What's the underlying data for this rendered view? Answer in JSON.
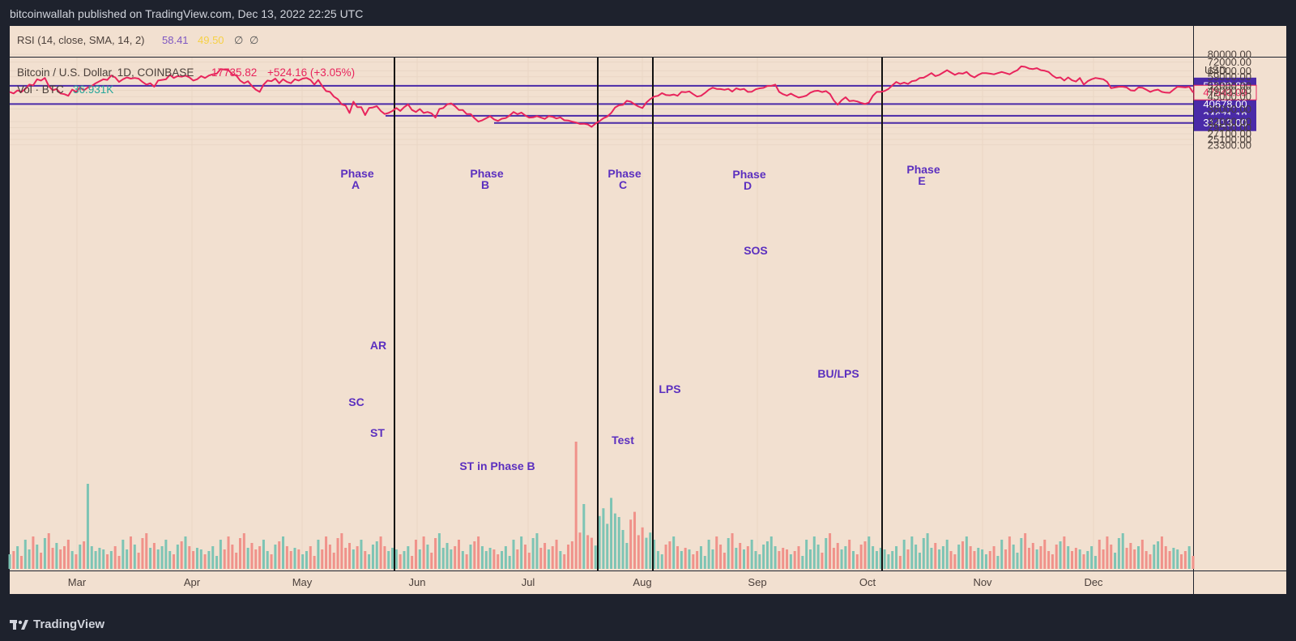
{
  "header": {
    "text": "bitcoinwallah published on TradingView.com, Dec 13, 2022 22:25 UTC"
  },
  "footer": {
    "brand": "TradingView"
  },
  "rsi": {
    "label": "RSI (14, close, SMA, 14, 2)",
    "value": "58.41",
    "sma": "49.50",
    "extra1": "∅",
    "extra2": "∅"
  },
  "legend": {
    "symbol": "Bitcoin / U.S. Dollar, 1D, COINBASE",
    "price": "17735.82",
    "change": "+524.16 (+3.05%)",
    "vol_label": "Vol · BTC",
    "vol_value": "36.931K"
  },
  "colors": {
    "line": "#e8245c",
    "level": "#4a2aa8",
    "annotation": "#5b2fbf",
    "bg": "#f2e0d0",
    "vol_up": "#7dc4b4",
    "vol_down": "#f0928a",
    "frame": "#1e222d"
  },
  "chart_data": {
    "type": "line",
    "ylabel": "USD",
    "y_scale": "log",
    "ylim": [
      23300,
      90000
    ],
    "x_ticks": [
      "Mar",
      "Apr",
      "May",
      "Jun",
      "Jul",
      "Aug",
      "Sep",
      "Oct",
      "Nov",
      "Dec"
    ],
    "y_ticks": [
      "80000.00",
      "72000.00",
      "64000.00",
      "59000.00",
      "52000.00",
      "49000.00",
      "45000.00",
      "38000.00",
      "32000.00",
      "29500.00",
      "27100.00",
      "25100.00",
      "23300.00"
    ],
    "horizontal_levels": [
      {
        "label": "52182.86",
        "value": 52182.86
      },
      {
        "label": "40678.00",
        "value": 40678.0
      },
      {
        "label": "34671.18",
        "value": 34671.18
      },
      {
        "label": "31413.00",
        "value": 31413.0
      }
    ],
    "last_price_label": "47543.09",
    "phase_dividers": [
      "late May",
      "late Jul",
      "early Aug",
      "early Oct"
    ],
    "phases": [
      {
        "line1": "Phase",
        "line2": "A"
      },
      {
        "line1": "Phase",
        "line2": "B"
      },
      {
        "line1": "Phase",
        "line2": "C"
      },
      {
        "line1": "Phase",
        "line2": "D"
      },
      {
        "line1": "Phase",
        "line2": "E"
      }
    ],
    "annotations": [
      "AR",
      "SC",
      "ST",
      "ST in Phase B",
      "Test",
      "LPS",
      "SOS",
      "BU/LPS"
    ],
    "series": [
      {
        "name": "Bitcoin / U.S. Dollar",
        "values": [
          48000,
          47000,
          49000,
          48000,
          50000,
          53000,
          52500,
          57000,
          56000,
          58000,
          52000,
          49000,
          50000,
          47000,
          46500,
          45500,
          49500,
          48000,
          51000,
          49000,
          51000,
          52000,
          54000,
          55500,
          57000,
          56500,
          60000,
          58500,
          55000,
          57000,
          58500,
          57500,
          58000,
          57500,
          55000,
          53000,
          54000,
          51500,
          56000,
          56500,
          57000,
          60500,
          58000,
          59500,
          59000,
          60000,
          58500,
          56000,
          57000,
          59500,
          58000,
          60000,
          61000,
          61500,
          65500,
          65000,
          64500,
          61000,
          60000,
          56000,
          54000,
          55500,
          52000,
          49500,
          48000,
          53000,
          56000,
          55500,
          57500,
          54000,
          57000,
          55000,
          54000,
          57000,
          56000,
          57500,
          58000,
          56500,
          53000,
          56500,
          52000,
          48500,
          48000,
          45000,
          43500,
          40500,
          39800,
          36000,
          42000,
          39000,
          39000,
          35000,
          38500,
          38800,
          39500,
          37000,
          35500,
          36000,
          37000,
          38500,
          37000,
          39000,
          40500,
          37500,
          36500,
          38000,
          36000,
          36500,
          35800,
          33800,
          38000,
          38500,
          40500,
          41000,
          39500,
          37500,
          37500,
          35500,
          35500,
          33500,
          32000,
          32600,
          33500,
          34500,
          33000,
          32300,
          33300,
          33600,
          34800,
          36500,
          35400,
          36200,
          34800,
          33800,
          33900,
          34500,
          33800,
          33200,
          34500,
          34200,
          33400,
          33900,
          32600,
          32500,
          32000,
          31600,
          31000,
          31100,
          30800,
          29800,
          31200,
          32200,
          33500,
          34300,
          36000,
          38800,
          40000,
          40200,
          42500,
          42000,
          40500,
          39300,
          38500,
          41500,
          43500,
          45000,
          45500,
          47200,
          46000,
          45800,
          46300,
          45500,
          48000,
          47800,
          48300,
          46500,
          45000,
          45500,
          47300,
          49500,
          50800,
          50000,
          49900,
          49400,
          50000,
          48200,
          50400,
          49500,
          50000,
          48000,
          48100,
          49700,
          50400,
          50700,
          52000,
          52100,
          53000,
          48000,
          46500,
          45600,
          46900,
          45500,
          44400,
          44900,
          45600,
          47500,
          48500,
          48800,
          47900,
          48500,
          46700,
          42700,
          40300,
          42800,
          44600,
          42300,
          42600,
          42100,
          41300,
          40700,
          41500,
          45500,
          48000,
          48000,
          48600,
          50000,
          52500,
          55000,
          53500,
          54500,
          53500,
          55500,
          56000,
          58000,
          58200,
          60000,
          62000,
          59500,
          60500,
          62500,
          64500,
          62500,
          60500,
          62000,
          61500,
          63000,
          60000,
          58500,
          60500,
          62000,
          62000,
          61500,
          61000,
          62000,
          63000,
          62000,
          61000,
          63000,
          64500,
          68000,
          67500,
          66000,
          65500,
          66300,
          64500,
          64000,
          63000,
          60000,
          58000,
          58500,
          56000,
          58500,
          56200,
          55300,
          58000,
          53000,
          55500,
          57000,
          58000,
          57500,
          57000,
          55000,
          50500,
          51000,
          51500,
          51500,
          51000,
          49000,
          48800,
          51000,
          50800,
          49500,
          48000,
          49000,
          49500,
          48000,
          47500,
          47400,
          49500,
          51500,
          51300,
          51000,
          51500,
          47543.09
        ]
      }
    ]
  }
}
